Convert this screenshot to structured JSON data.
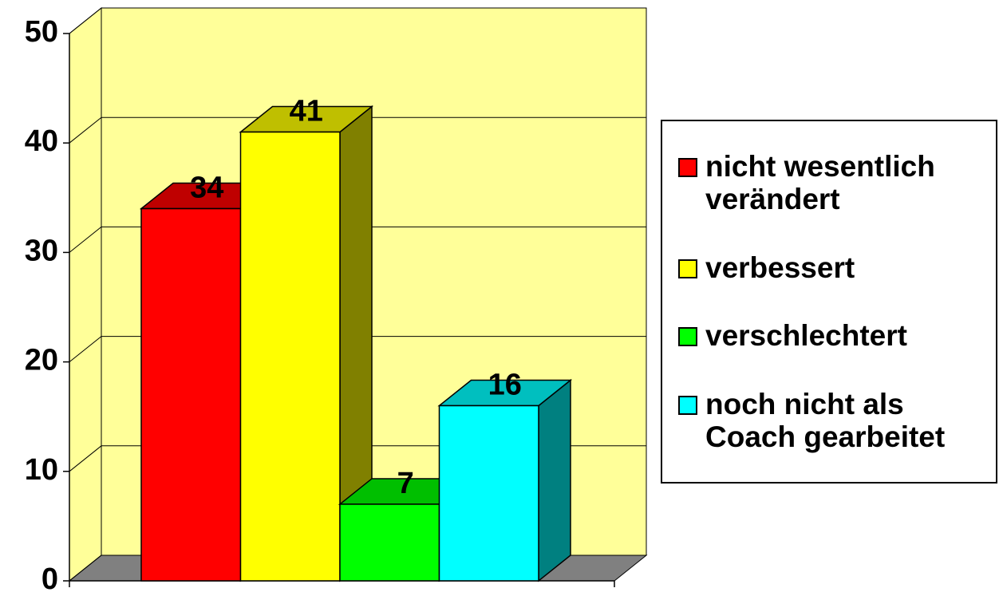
{
  "chart_data": {
    "type": "bar3d",
    "series": [
      {
        "name": "nicht wesentlich verändert",
        "color": "#ff0000",
        "values": [
          34
        ]
      },
      {
        "name": "verbessert",
        "color": "#ffff00",
        "values": [
          41
        ]
      },
      {
        "name": "verschlechtert",
        "color": "#00ff00",
        "values": [
          7
        ]
      },
      {
        "name": "noch nicht als Coach gearbeitet",
        "color": "#00ffff",
        "values": [
          16
        ]
      }
    ],
    "ylim": [
      0,
      50
    ],
    "yticks": [
      0,
      10,
      20,
      30,
      40,
      50
    ],
    "grid": true,
    "wall_color": "#ffff99",
    "floor_color": "#808080",
    "legend": "right"
  }
}
